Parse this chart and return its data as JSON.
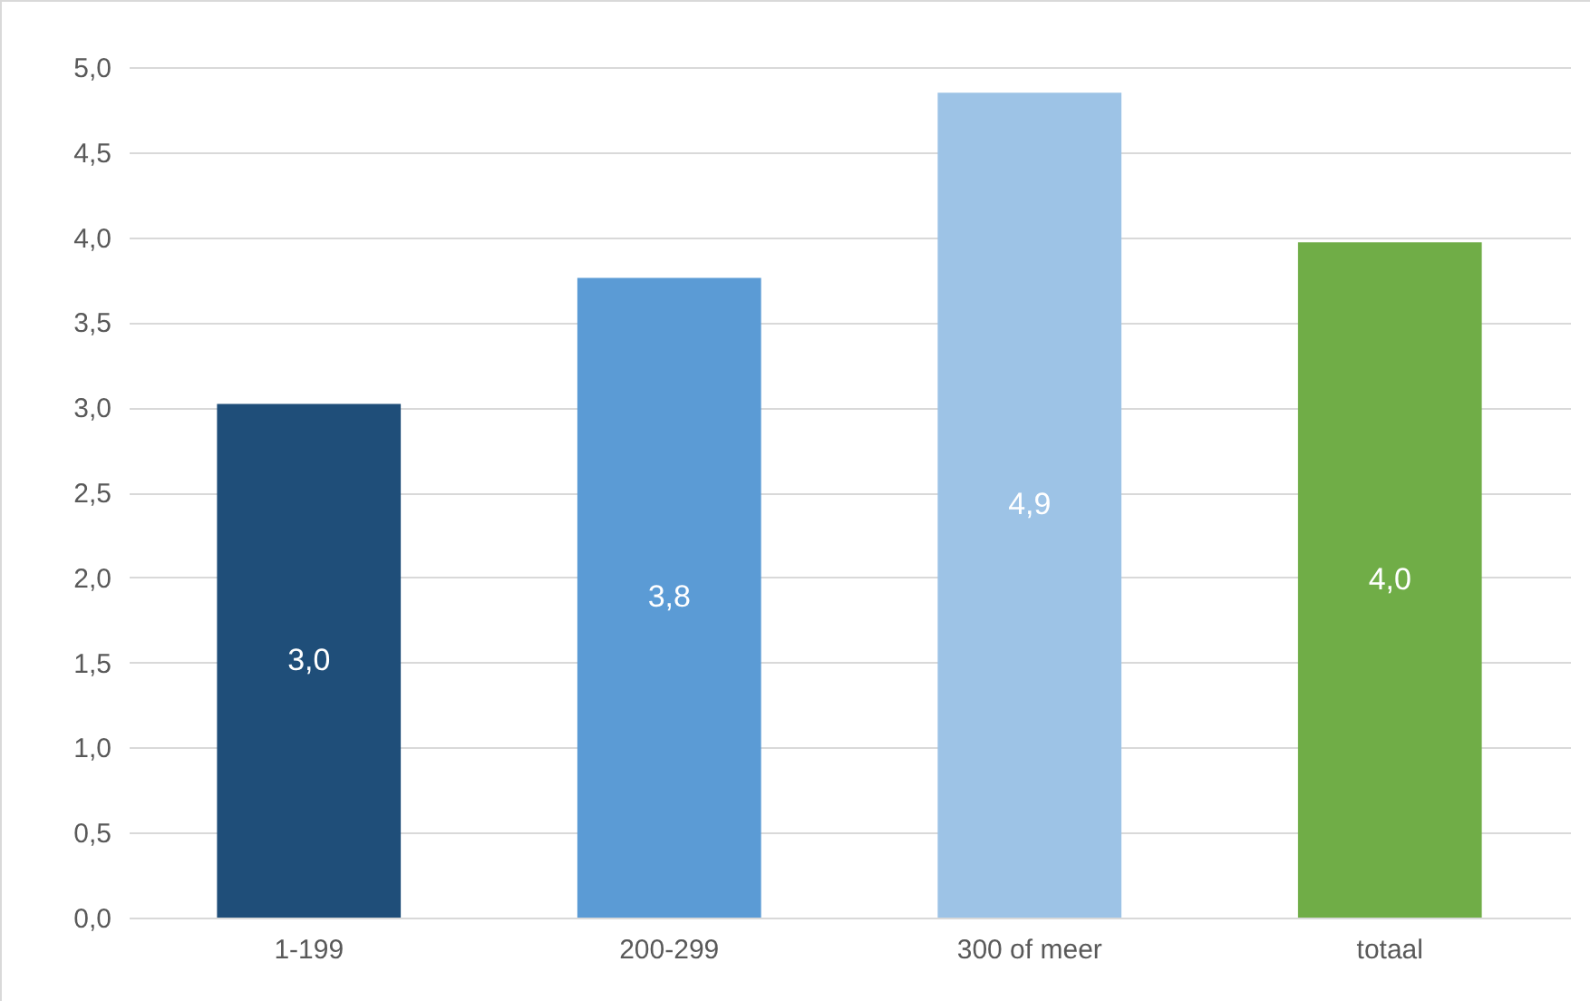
{
  "chart_data": {
    "type": "bar",
    "categories": [
      "1-199",
      "200-299",
      "300 of meer",
      "totaal"
    ],
    "values": [
      3.02,
      3.76,
      4.85,
      3.97
    ],
    "colors": [
      "#1f4e79",
      "#5b9bd5",
      "#9dc3e6",
      "#70ad47"
    ],
    "value_labels": [
      "3,0",
      "3,8",
      "4,9",
      "4,0"
    ],
    "ylim": [
      0,
      5
    ],
    "yticks": [
      {
        "value": 0,
        "label": "0,0"
      },
      {
        "value": 0.5,
        "label": "0,5"
      },
      {
        "value": 1,
        "label": "1,0"
      },
      {
        "value": 1.5,
        "label": "1,5"
      },
      {
        "value": 2,
        "label": "2,0"
      },
      {
        "value": 2.5,
        "label": "2,5"
      },
      {
        "value": 3,
        "label": "3,0"
      },
      {
        "value": 3.5,
        "label": "3,5"
      },
      {
        "value": 4,
        "label": "4,0"
      },
      {
        "value": 4.5,
        "label": "4,5"
      },
      {
        "value": 5,
        "label": "5,0"
      }
    ],
    "grid": "y"
  }
}
